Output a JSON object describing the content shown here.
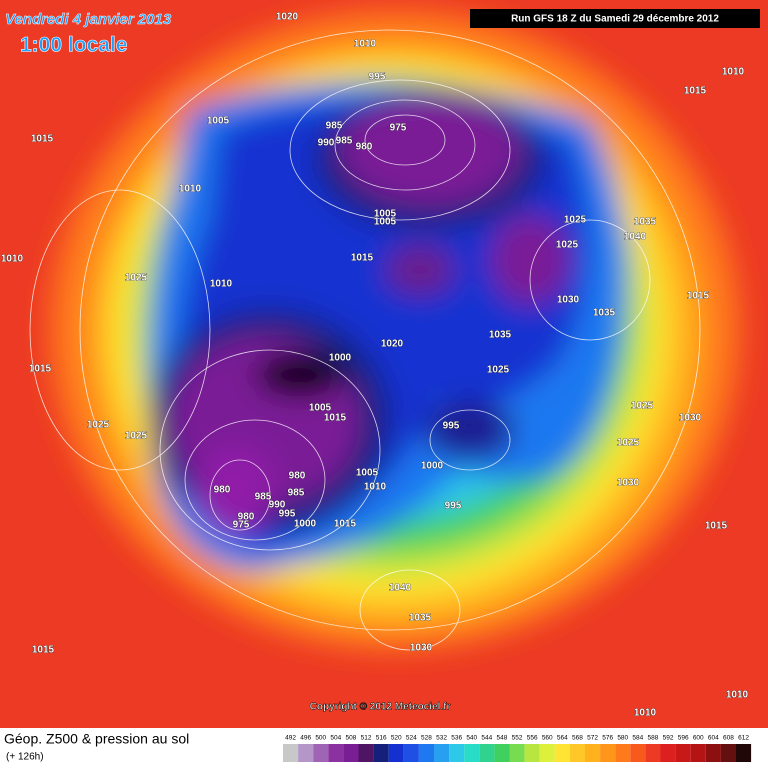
{
  "header": {
    "date": "Vendredi 4 janvier 2013",
    "time": "1:00 locale",
    "run": "Run GFS 18 Z du Samedi 29 décembre 2012"
  },
  "map": {
    "isobar_labels": [
      1020,
      1010,
      995,
      1010,
      1015,
      1005,
      1015,
      985,
      975,
      990,
      985,
      980,
      1010,
      1005,
      1005,
      1025,
      1035,
      1040,
      1025,
      1010,
      1015,
      1025,
      1010,
      1030,
      1035,
      1015,
      1035,
      1020,
      1000,
      1025,
      1015,
      1005,
      1015,
      1025,
      1030,
      1025,
      1025,
      995,
      1025,
      1000,
      1005,
      980,
      1030,
      1010,
      985,
      985,
      980,
      990,
      995,
      995,
      980,
      975,
      1000,
      1015,
      1015,
      1040,
      1035,
      1030,
      1015,
      1010,
      1010
    ],
    "copyright": "Copyright © 2012 Meteociel.fr"
  },
  "legend": {
    "title": "Géop. Z500 & pression au sol",
    "lead": "(+ 126h)",
    "scale": [
      492,
      496,
      500,
      504,
      508,
      512,
      516,
      520,
      524,
      528,
      532,
      536,
      540,
      544,
      548,
      552,
      556,
      560,
      564,
      568,
      572,
      576,
      580,
      584,
      588,
      592,
      596,
      600,
      604,
      608,
      612
    ]
  }
}
